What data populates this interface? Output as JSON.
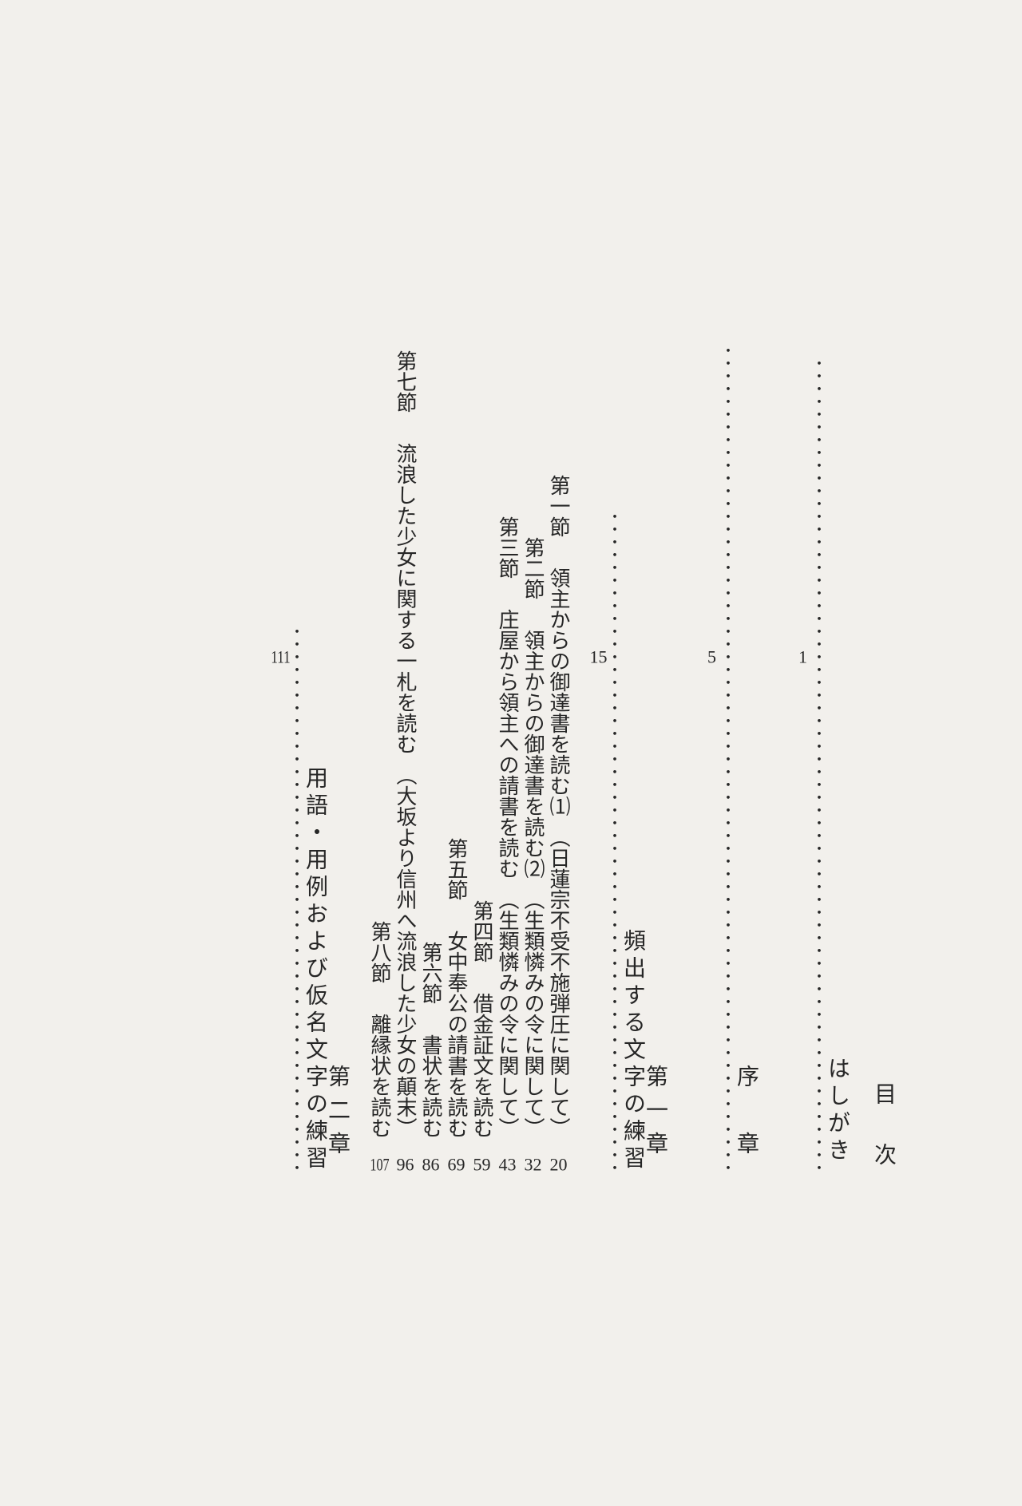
{
  "title": "目　次",
  "entries": [
    {
      "label": "はしがき",
      "headingLevel": "front",
      "leaderCount": 64,
      "pageNum": "1"
    },
    {
      "label": "序　章",
      "headingLevel": "chapter",
      "leaderCount": 65,
      "pageNum": "5"
    },
    {
      "label": "第一章",
      "content": "頻出する文字の練習",
      "headingLevel": "chapter",
      "leaderCount": 52,
      "pageNum": "15"
    },
    {
      "label": "第一節",
      "content": "領主からの御達書を読む⑴　（日蓮宗不受不施弾圧に関して）",
      "headingLevel": "section",
      "inlinePage": "20"
    },
    {
      "label": "第二節",
      "content": "領主からの御達書を読む⑵　（生類憐みの令に関して）",
      "headingLevel": "section",
      "inlinePage": "32"
    },
    {
      "label": "第三節",
      "content": "庄屋から領主への請書を読む　（生類憐みの令に関して）",
      "headingLevel": "section",
      "inlinePage": "43"
    },
    {
      "label": "第四節",
      "content": "借金証文を読む",
      "headingLevel": "section",
      "inlinePage": "59"
    },
    {
      "label": "第五節",
      "content": "女中奉公の請書を読む",
      "headingLevel": "section",
      "inlinePage": "69"
    },
    {
      "label": "第六節",
      "content": "書状を読む",
      "headingLevel": "section",
      "inlinePage": "86"
    },
    {
      "label": "第七節",
      "content": "流浪した少女に関する一札を読む　（大坂より信州へ流浪した少女の顛末）",
      "headingLevel": "section",
      "inlinePage": "96"
    },
    {
      "label": "第八節",
      "content": "離縁状を読む",
      "headingLevel": "section",
      "inlinePage": "107"
    },
    {
      "label": "第二章",
      "content": "用語・用例および仮名文字の練習",
      "headingLevel": "chapter",
      "leaderCount": 43,
      "pageNum": "111"
    }
  ],
  "style": {
    "backgroundColor": "#f2f0ec",
    "textColor": "#262626",
    "fontFamily": "Hiragino Mincho Pro",
    "baseFontSize": 26,
    "headingFontSize": 28,
    "pageNumFontSize": 22,
    "columnGap": 6,
    "headingColumnExtraGap": 30,
    "columnHeightPx": 1300
  },
  "meta": {
    "writingMode": "vertical-rl",
    "docType": "table-of-contents"
  }
}
